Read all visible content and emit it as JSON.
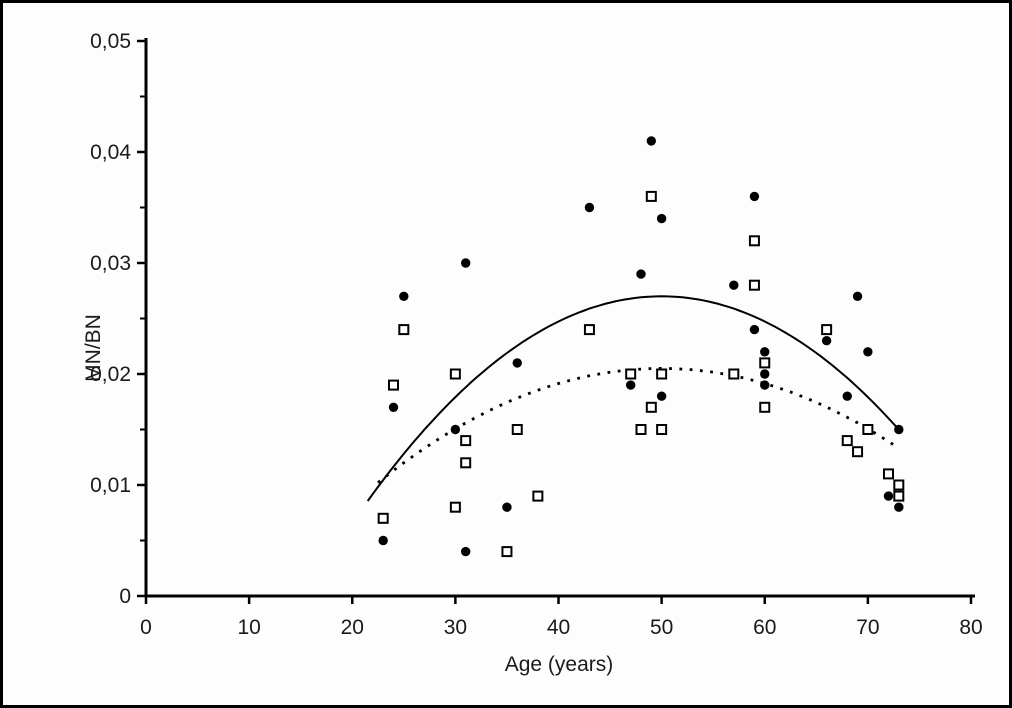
{
  "figure": {
    "background_color": "#fdfdfd",
    "frame_color": "#000000",
    "axis_color": "#000000",
    "marker_color": "#000000"
  },
  "chart_data": {
    "type": "scatter",
    "title": "",
    "xlabel": "Age (years)",
    "ylabel": "MN/BN",
    "xlim": [
      0,
      80
    ],
    "ylim": [
      0,
      0.05
    ],
    "grid": false,
    "legend": "none",
    "x_ticks": [
      0,
      10,
      20,
      30,
      40,
      50,
      60,
      70,
      80
    ],
    "x_tick_labels": [
      "0",
      "10",
      "20",
      "30",
      "40",
      "50",
      "60",
      "70",
      "80"
    ],
    "y_ticks": [
      0,
      0.01,
      0.02,
      0.03,
      0.04,
      0.05
    ],
    "y_tick_labels": [
      "0",
      "0,01",
      "0,02",
      "0,03",
      "0,04",
      "0,05"
    ],
    "y_minor_ticks": [
      0.005,
      0.015,
      0.025,
      0.035,
      0.045
    ],
    "decimal_separator": ",",
    "series": [
      {
        "name": "filled-circles",
        "marker": "filled-circle",
        "points": [
          [
            23,
            0.005
          ],
          [
            24,
            0.017
          ],
          [
            25,
            0.027
          ],
          [
            30,
            0.015
          ],
          [
            31,
            0.03
          ],
          [
            31,
            0.004
          ],
          [
            35,
            0.008
          ],
          [
            36,
            0.021
          ],
          [
            43,
            0.035
          ],
          [
            47,
            0.019
          ],
          [
            48,
            0.029
          ],
          [
            49,
            0.041
          ],
          [
            50,
            0.034
          ],
          [
            50,
            0.018
          ],
          [
            57,
            0.028
          ],
          [
            59,
            0.036
          ],
          [
            59,
            0.024
          ],
          [
            60,
            0.022
          ],
          [
            60,
            0.02
          ],
          [
            60,
            0.019
          ],
          [
            66,
            0.023
          ],
          [
            68,
            0.018
          ],
          [
            69,
            0.027
          ],
          [
            70,
            0.022
          ],
          [
            72,
            0.009
          ],
          [
            73,
            0.015
          ],
          [
            73,
            0.008
          ]
        ]
      },
      {
        "name": "open-squares",
        "marker": "open-square",
        "points": [
          [
            23,
            0.007
          ],
          [
            24,
            0.019
          ],
          [
            25,
            0.024
          ],
          [
            30,
            0.02
          ],
          [
            30,
            0.008
          ],
          [
            31,
            0.014
          ],
          [
            31,
            0.012
          ],
          [
            35,
            0.004
          ],
          [
            36,
            0.015
          ],
          [
            38,
            0.009
          ],
          [
            43,
            0.024
          ],
          [
            47,
            0.02
          ],
          [
            48,
            0.015
          ],
          [
            49,
            0.036
          ],
          [
            49,
            0.017
          ],
          [
            50,
            0.02
          ],
          [
            50,
            0.015
          ],
          [
            57,
            0.02
          ],
          [
            59,
            0.032
          ],
          [
            59,
            0.028
          ],
          [
            60,
            0.021
          ],
          [
            60,
            0.017
          ],
          [
            66,
            0.024
          ],
          [
            68,
            0.014
          ],
          [
            69,
            0.013
          ],
          [
            70,
            0.015
          ],
          [
            72,
            0.011
          ],
          [
            73,
            0.01
          ],
          [
            73,
            0.009
          ]
        ]
      }
    ],
    "trend_lines": [
      {
        "name": "solid-trend",
        "style": "solid",
        "fits_series": "filled-circles",
        "x_start": 21.5,
        "x_end": 73,
        "peak_x": 50,
        "peak_y": 0.027,
        "quad_coef": -2.27e-05
      },
      {
        "name": "dotted-trend",
        "style": "dotted",
        "fits_series": "open-squares",
        "x_start": 22.5,
        "x_end": 73,
        "peak_x": 50,
        "peak_y": 0.0205,
        "quad_coef": -1.36e-05
      }
    ]
  }
}
